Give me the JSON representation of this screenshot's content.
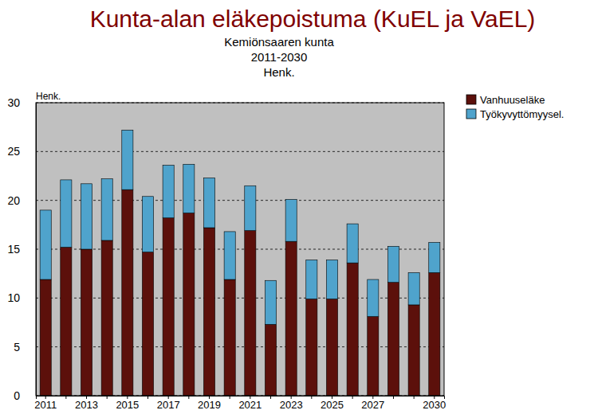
{
  "chart_data": {
    "type": "bar",
    "title": "Kunta-alan eläkepoistuma (KuEL ja VaEL)",
    "subtitle": [
      "Kemiönsaaren kunta",
      "2011-2030",
      "Henk."
    ],
    "y_label": "Henk.",
    "categories": [
      "2011",
      null,
      "2013",
      null,
      "2015",
      null,
      "2017",
      null,
      "2019",
      null,
      "2021",
      null,
      "2023",
      null,
      "2025",
      null,
      "2027",
      null,
      null,
      "2030"
    ],
    "series": [
      {
        "name": "Vanhuuseläke",
        "color": "#5c100b",
        "values": [
          11.9,
          15.2,
          15.0,
          15.9,
          21.1,
          14.7,
          18.2,
          18.7,
          17.2,
          11.9,
          16.9,
          7.3,
          15.8,
          9.9,
          9.9,
          13.6,
          8.1,
          11.6,
          9.3,
          12.6
        ]
      },
      {
        "name": "Työkyvyttömyysel.",
        "color": "#4fa3cc",
        "values": [
          7.1,
          6.9,
          6.7,
          6.3,
          6.1,
          5.7,
          5.4,
          5.0,
          5.1,
          4.9,
          4.6,
          4.5,
          4.3,
          4.0,
          4.0,
          4.0,
          3.8,
          3.7,
          3.3,
          3.1
        ]
      }
    ],
    "ylim": [
      0,
      30
    ],
    "yticks": [
      0,
      5,
      10,
      15,
      20,
      25,
      30
    ],
    "stacked": true,
    "grid": true,
    "legend": "top-right"
  }
}
